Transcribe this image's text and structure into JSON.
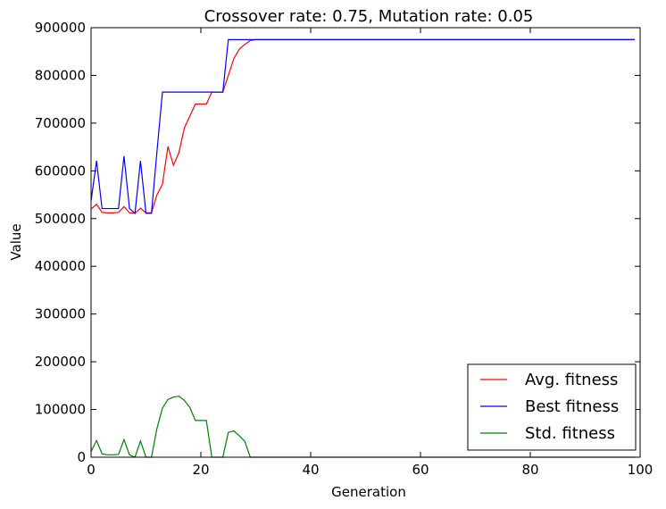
{
  "chart_data": {
    "type": "line",
    "title": "Crossover rate: 0.75, Mutation rate: 0.05",
    "xlabel": "Generation",
    "ylabel": "Value",
    "xlim": [
      0,
      100
    ],
    "ylim": [
      0,
      900000
    ],
    "xticks": [
      0,
      20,
      40,
      60,
      80,
      100
    ],
    "xtick_labels": [
      "0",
      "20",
      "40",
      "60",
      "80",
      "100"
    ],
    "yticks": [
      0,
      100000,
      200000,
      300000,
      400000,
      500000,
      600000,
      700000,
      800000,
      900000
    ],
    "ytick_labels": [
      "0",
      "100000",
      "200000",
      "300000",
      "400000",
      "500000",
      "600000",
      "700000",
      "800000",
      "900000"
    ],
    "legend_position": "lower-right",
    "series": [
      {
        "name": "Avg. fitness",
        "color": "#ff0000",
        "x": [
          0,
          1,
          2,
          3,
          4,
          5,
          6,
          7,
          8,
          9,
          10,
          11,
          12,
          13,
          14,
          15,
          16,
          17,
          18,
          19,
          20,
          21,
          22,
          23,
          24,
          25,
          26,
          27,
          28,
          29,
          30,
          99
        ],
        "values": [
          520000,
          530000,
          513000,
          512000,
          512000,
          513000,
          525000,
          512000,
          511000,
          522000,
          512000,
          512000,
          550000,
          572000,
          651000,
          612000,
          638000,
          690000,
          715000,
          740000,
          740000,
          740000,
          765000,
          765000,
          765000,
          800000,
          835000,
          855000,
          865000,
          873000,
          875000,
          875000
        ]
      },
      {
        "name": "Best fitness",
        "color": "#0000ff",
        "x": [
          0,
          1,
          2,
          3,
          4,
          5,
          6,
          7,
          8,
          9,
          10,
          11,
          12,
          13,
          14,
          15,
          16,
          17,
          18,
          19,
          20,
          21,
          22,
          23,
          24,
          25,
          26,
          27,
          28,
          29,
          30,
          99
        ],
        "values": [
          537000,
          621000,
          521000,
          521000,
          521000,
          521000,
          631000,
          521000,
          511000,
          621000,
          511000,
          511000,
          640000,
          765000,
          765000,
          765000,
          765000,
          765000,
          765000,
          765000,
          765000,
          765000,
          765000,
          765000,
          765000,
          875000,
          875000,
          875000,
          875000,
          875000,
          875000,
          875000
        ]
      },
      {
        "name": "Std. fitness",
        "color": "#008000",
        "x": [
          0,
          1,
          2,
          3,
          4,
          5,
          6,
          7,
          8,
          9,
          10,
          11,
          12,
          13,
          14,
          15,
          16,
          17,
          18,
          19,
          20,
          21,
          22,
          23,
          24,
          25,
          26,
          27,
          28,
          29,
          30,
          99
        ],
        "values": [
          12000,
          35000,
          7000,
          5000,
          5000,
          6000,
          37000,
          5000,
          0,
          34000,
          0,
          0,
          60000,
          103000,
          121000,
          126000,
          128000,
          119000,
          104000,
          77000,
          77000,
          77000,
          0,
          0,
          0,
          52000,
          55000,
          45000,
          33000,
          0,
          0,
          0
        ]
      }
    ]
  }
}
